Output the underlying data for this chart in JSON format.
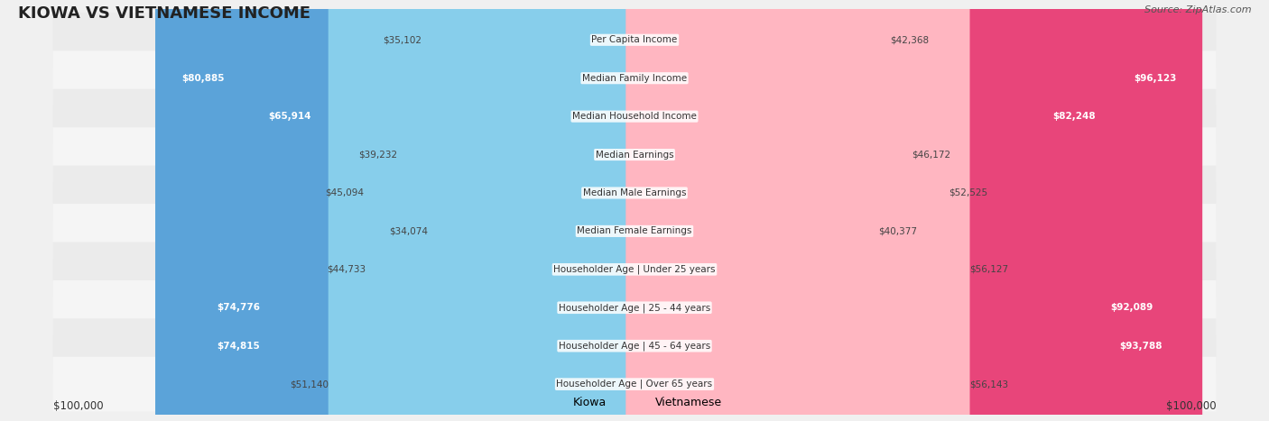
{
  "title": "KIOWA VS VIETNAMESE INCOME",
  "source": "Source: ZipAtlas.com",
  "categories": [
    "Per Capita Income",
    "Median Family Income",
    "Median Household Income",
    "Median Earnings",
    "Median Male Earnings",
    "Median Female Earnings",
    "Householder Age | Under 25 years",
    "Householder Age | 25 - 44 years",
    "Householder Age | 45 - 64 years",
    "Householder Age | Over 65 years"
  ],
  "kiowa_values": [
    35102,
    80885,
    65914,
    39232,
    45094,
    34074,
    44733,
    74776,
    74815,
    51140
  ],
  "vietnamese_values": [
    42368,
    96123,
    82248,
    46172,
    52525,
    40377,
    56127,
    92089,
    93788,
    56143
  ],
  "kiowa_labels": [
    "$35,102",
    "$80,885",
    "$65,914",
    "$39,232",
    "$45,094",
    "$34,074",
    "$44,733",
    "$74,776",
    "$74,815",
    "$51,140"
  ],
  "vietnamese_labels": [
    "$42,368",
    "$96,123",
    "$82,248",
    "$46,172",
    "$52,525",
    "$40,377",
    "$56,127",
    "$92,089",
    "$93,788",
    "$56,143"
  ],
  "max_value": 100000,
  "kiowa_bar_color_normal": "#87CEEB",
  "kiowa_bar_color_highlight": "#5BA3D9",
  "vietnamese_bar_color_normal": "#FFB6C1",
  "vietnamese_bar_color_highlight": "#E8457A",
  "kiowa_highlight": [
    1,
    2,
    7,
    8
  ],
  "vietnamese_highlight": [
    1,
    2,
    7,
    8
  ],
  "background_color": "#f5f5f5",
  "row_bg_color": "#ffffff",
  "row_alt_color": "#f0f0f0",
  "legend_kiowa": "Kiowa",
  "legend_vietnamese": "Vietnamese",
  "x_label_left": "$100,000",
  "x_label_right": "$100,000"
}
